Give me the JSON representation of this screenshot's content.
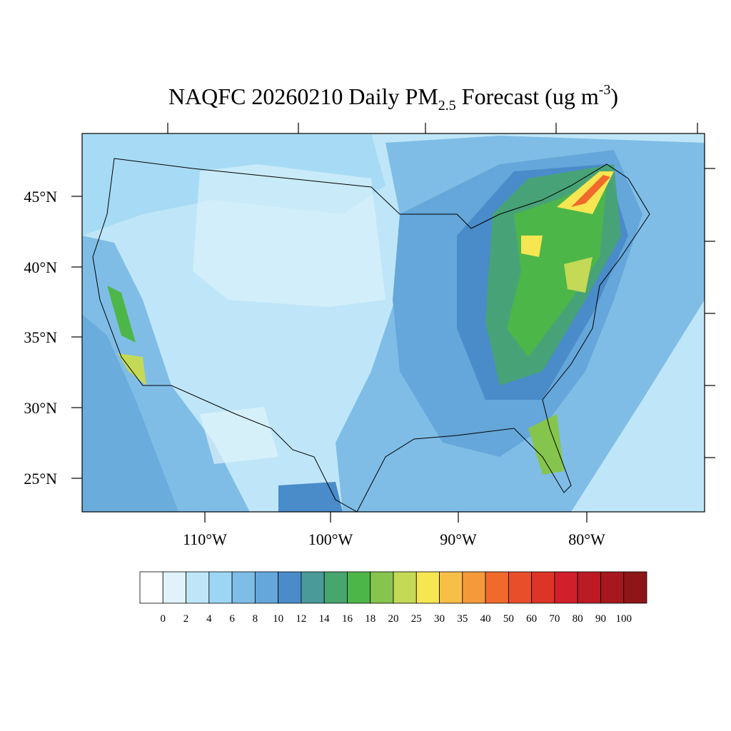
{
  "title": {
    "main": "NAQFC 20260210 Daily PM",
    "sub": "2.5",
    "middle": " Forecast (ug m",
    "sup": "-3",
    "end": ")"
  },
  "lat_labels": [
    "45°N",
    "40°N",
    "35°N",
    "30°N",
    "25°N"
  ],
  "lon_labels": [
    "110°W",
    "100°W",
    "90°W",
    "80°W"
  ],
  "colorbar": {
    "colors": [
      "#ffffff",
      "#e0f3fb",
      "#bfe6f8",
      "#9dd6f4",
      "#7fbde6",
      "#65a7da",
      "#4a8bc9",
      "#4a9a9a",
      "#47a56e",
      "#4db649",
      "#86c54d",
      "#c4d955",
      "#f6e651",
      "#f8bf48",
      "#f59a3b",
      "#f06a2b",
      "#e94e2b",
      "#dc3427",
      "#d11f2b",
      "#bc1a24",
      "#a7181e",
      "#8e1518"
    ],
    "labels": [
      0,
      2,
      4,
      6,
      8,
      10,
      12,
      14,
      16,
      18,
      20,
      25,
      30,
      35,
      40,
      50,
      60,
      70,
      80,
      90,
      100
    ]
  }
}
